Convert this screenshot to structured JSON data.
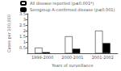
{
  "chart_data": {
    "type": "bar",
    "categories": [
      "1999-2000",
      "2000-2001",
      "2001-2002"
    ],
    "series": [
      {
        "name": "All disease reported (p≤0.001*)",
        "color": "#ffffff",
        "values": [
          0.5,
          1.5,
          2.0
        ]
      },
      {
        "name": "Serogroup A-confirmed disease (p≤0.001)",
        "color": "#000000",
        "values": [
          0.1,
          0.4,
          0.9
        ]
      }
    ],
    "xlabel": "Years of surveillance",
    "ylabel": "Cases per 100,000",
    "ylim": [
      0,
      3.5
    ],
    "yticks": [
      0.5,
      1.0,
      1.5,
      2.0,
      2.5,
      3.0,
      3.5
    ],
    "grid": false,
    "legend": "upper left"
  }
}
